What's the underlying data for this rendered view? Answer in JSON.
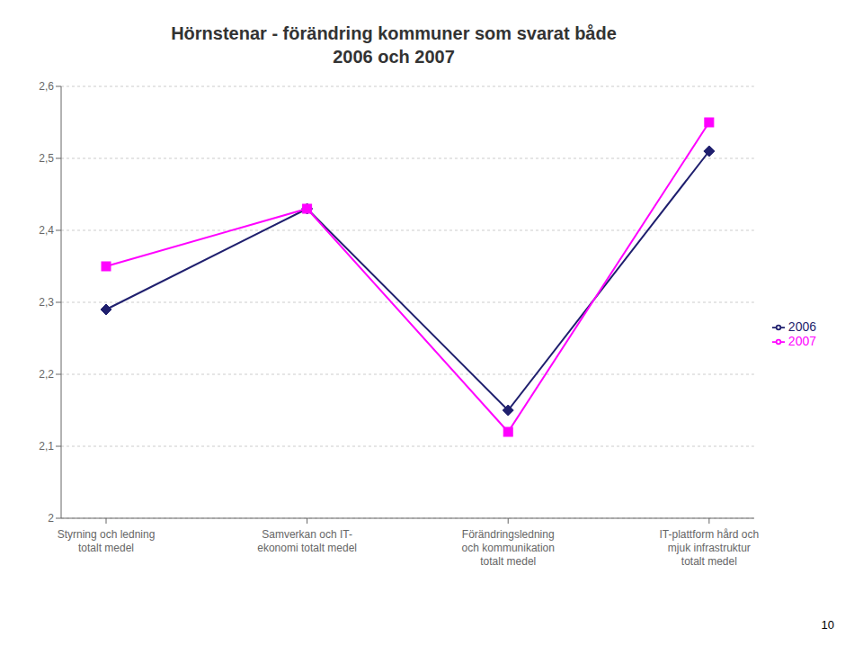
{
  "chart_data": {
    "type": "line",
    "title": "Hörnstenar - förändring kommuner som svarat både\n2006 och 2007",
    "categories": [
      "Styrning och ledning\ntotalt medel",
      "Samverkan och IT-\nekonomi totalt medel",
      "Förändringsledning\noch kommunikation\ntotalt medel",
      "IT-plattform hård och\nmjuk infrastruktur\ntotalt medel"
    ],
    "series": [
      {
        "name": "2006",
        "color": "#1F1F6E",
        "marker": "diamond",
        "values": [
          2.29,
          2.43,
          2.15,
          2.51
        ]
      },
      {
        "name": "2007",
        "color": "#FF00FF",
        "marker": "square",
        "values": [
          2.35,
          2.43,
          2.12,
          2.55
        ]
      }
    ],
    "ylim": [
      2.0,
      2.6
    ],
    "yticks": [
      2,
      {
        "value": 2.1,
        "label": "2,1"
      },
      {
        "value": 2.2,
        "label": "2,2"
      },
      {
        "value": 2.3,
        "label": "2,3"
      },
      {
        "value": 2.4,
        "label": "2,4"
      },
      {
        "value": 2.5,
        "label": "2,5"
      },
      {
        "value": 2.6,
        "label": "2,6"
      }
    ],
    "grid": true,
    "legend": "right",
    "annotations": [
      "10"
    ]
  }
}
